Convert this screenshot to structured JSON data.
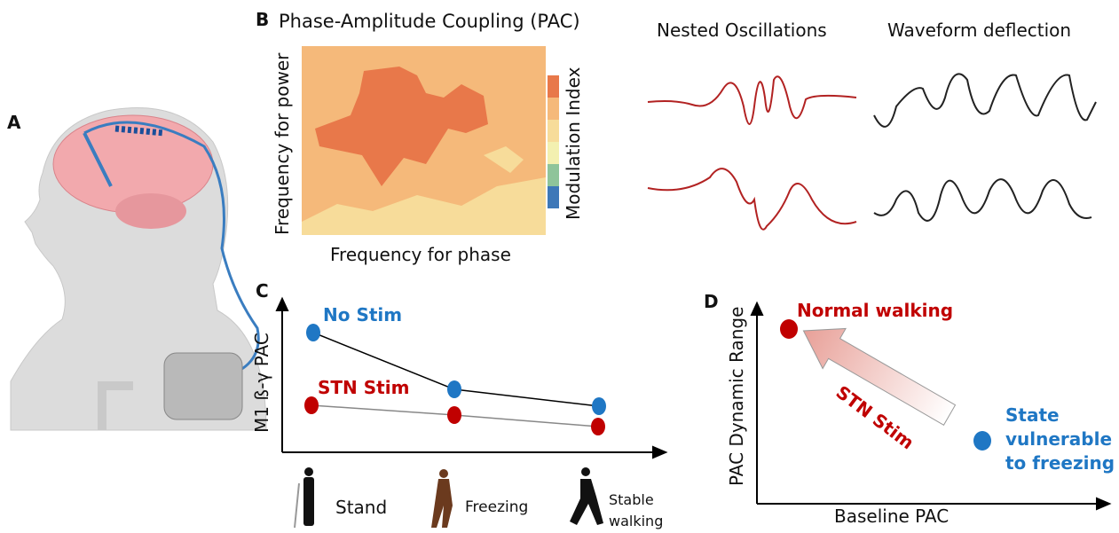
{
  "panels": [
    {
      "label": "A"
    },
    {
      "label": "B",
      "title": "Phase-Amplitude Coupling (PAC)",
      "y_axis": "Frequency for power",
      "x_axis": "Frequency for phase",
      "colorbar": "Modulation Index",
      "waveform_titles": [
        "Nested Oscillations",
        "Waveform deflection"
      ]
    },
    {
      "label": "C",
      "y_axis": "M1 ß-γ PAC",
      "series": [
        "No Stim",
        "STN Stim"
      ],
      "conditions": [
        "Stand",
        "Freezing",
        "Stable walking"
      ]
    },
    {
      "label": "D",
      "y_axis": "PAC Dynamic Range",
      "x_axis": "Baseline PAC",
      "points": [
        "Normal walking",
        "State vulnerable to freezing"
      ],
      "arrow": "STN Stim"
    }
  ]
}
